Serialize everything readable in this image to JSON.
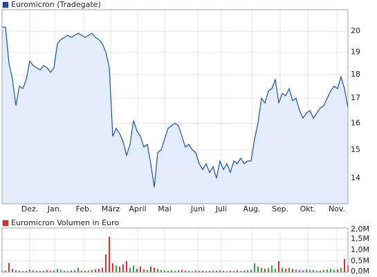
{
  "chart_data": [
    {
      "type": "line",
      "log_scale": true,
      "grid": true,
      "fill": "#e3ecfa",
      "series": [
        {
          "name": "Euromicron (Tradegate)",
          "color": "#1f4e9c",
          "values": [
            20.2,
            20.2,
            18.5,
            17.8,
            16.7,
            17.5,
            17.4,
            17.8,
            18.6,
            18.4,
            18.3,
            18.2,
            18.4,
            18.3,
            18.1,
            18.3,
            19.4,
            19.6,
            19.7,
            19.8,
            19.7,
            19.8,
            19.9,
            19.8,
            19.7,
            19.8,
            19.9,
            19.7,
            19.6,
            19.4,
            19.0,
            18.3,
            15.5,
            15.8,
            15.6,
            15.3,
            14.8,
            15.2,
            16.1,
            15.7,
            15.5,
            15.1,
            15.2,
            14.5,
            13.7,
            14.9,
            15.0,
            15.4,
            15.8,
            15.9,
            16.0,
            15.9,
            15.5,
            15.1,
            15.2,
            15.0,
            14.9,
            14.5,
            14.3,
            14.5,
            14.2,
            14.4,
            14.0,
            14.6,
            14.3,
            14.5,
            14.2,
            14.6,
            14.5,
            14.7,
            14.5,
            14.6,
            14.6,
            15.4,
            16.0,
            17.0,
            16.8,
            17.3,
            17.4,
            17.8,
            16.8,
            17.2,
            17.1,
            17.4,
            16.9,
            17.0,
            16.5,
            16.2,
            16.4,
            16.5,
            16.2,
            16.4,
            16.6,
            16.7,
            17.0,
            17.3,
            17.5,
            17.4,
            17.9,
            17.4,
            16.6
          ]
        }
      ],
      "x": [
        0,
        1,
        2,
        3,
        4,
        5,
        6,
        7,
        8,
        9,
        10,
        11,
        12,
        13,
        14,
        15,
        16,
        17,
        18,
        19,
        20,
        21,
        22,
        23,
        24,
        25,
        26,
        27,
        28,
        29,
        30,
        31,
        32,
        33,
        34,
        35,
        36,
        37,
        38,
        39,
        40,
        41,
        42,
        43,
        44,
        45,
        46,
        47,
        48,
        49,
        50,
        51,
        52,
        53,
        54,
        55,
        56,
        57,
        58,
        59,
        60,
        61,
        62,
        63,
        64,
        65,
        66,
        67,
        68,
        69,
        70,
        71,
        72,
        73,
        74,
        75,
        76,
        77,
        78,
        79,
        80,
        81,
        82,
        83,
        84,
        85,
        86,
        87,
        88,
        89,
        90,
        91,
        92,
        93,
        94,
        95,
        96,
        97,
        98,
        99,
        100
      ],
      "xlim": [
        0,
        100
      ],
      "xticks": [
        {
          "value": 8,
          "label": "Dez."
        },
        {
          "value": 15.2,
          "label": "Jan."
        },
        {
          "value": 23.6,
          "label": "Feb."
        },
        {
          "value": 31.4,
          "label": "März"
        },
        {
          "value": 39.2,
          "label": "April"
        },
        {
          "value": 47,
          "label": "Mai"
        },
        {
          "value": 56.6,
          "label": "Juni"
        },
        {
          "value": 63.4,
          "label": "Juli"
        },
        {
          "value": 72.2,
          "label": "Aug."
        },
        {
          "value": 80.4,
          "label": "Sep."
        },
        {
          "value": 88.4,
          "label": "Okt."
        },
        {
          "value": 96.8,
          "label": "Nov."
        }
      ],
      "ylim": [
        13.16,
        21.07
      ],
      "yticks": [
        14,
        15,
        16,
        17,
        18,
        19,
        20
      ]
    },
    {
      "type": "bar",
      "grid": true,
      "series": [
        {
          "name": "Euromicron Volumen in Euro",
          "color": "#cc3333",
          "values": [
            60000,
            80000,
            420000,
            150000,
            90000,
            70000,
            50000,
            60000,
            120000,
            80000,
            60000,
            50000,
            70000,
            90000,
            60000,
            80000,
            150000,
            100000,
            70000,
            60000,
            80000,
            90000,
            200000,
            70000,
            60000,
            80000,
            100000,
            120000,
            150000,
            200000,
            800000,
            1600000,
            400000,
            300000,
            250000,
            350000,
            500000,
            200000,
            300000,
            150000,
            250000,
            120000,
            100000,
            250000,
            200000,
            150000,
            100000,
            80000,
            70000,
            90000,
            60000,
            80000,
            100000,
            70000,
            60000,
            50000,
            80000,
            60000,
            70000,
            50000,
            60000,
            80000,
            70000,
            90000,
            60000,
            50000,
            70000,
            60000,
            80000,
            60000,
            70000,
            90000,
            100000,
            400000,
            250000,
            200000,
            150000,
            180000,
            300000,
            150000,
            500000,
            200000,
            150000,
            200000,
            150000,
            120000,
            100000,
            80000,
            120000,
            100000,
            90000,
            70000,
            80000,
            100000,
            120000,
            150000,
            110000,
            130000,
            200000,
            600000,
            300000
          ],
          "colors": [
            "#3c9a3c",
            "#3c9a3c",
            "#cc3333",
            "#cc3333",
            "#cc3333",
            "#3c9a3c",
            "#cc3333",
            "#3c9a3c",
            "#3c9a3c",
            "#cc3333",
            "#cc3333",
            "#cc3333",
            "#3c9a3c",
            "#cc3333",
            "#cc3333",
            "#3c9a3c",
            "#3c9a3c",
            "#3c9a3c",
            "#3c9a3c",
            "#3c9a3c",
            "#cc3333",
            "#3c9a3c",
            "#3c9a3c",
            "#cc3333",
            "#cc3333",
            "#3c9a3c",
            "#3c9a3c",
            "#cc3333",
            "#cc3333",
            "#cc3333",
            "#cc3333",
            "#cc3333",
            "#cc3333",
            "#3c9a3c",
            "#cc3333",
            "#cc3333",
            "#cc3333",
            "#3c9a3c",
            "#3c9a3c",
            "#cc3333",
            "#cc3333",
            "#cc3333",
            "#3c9a3c",
            "#cc3333",
            "#cc3333",
            "#3c9a3c",
            "#3c9a3c",
            "#3c9a3c",
            "#3c9a3c",
            "#3c9a3c",
            "#3c9a3c",
            "#cc3333",
            "#cc3333",
            "#cc3333",
            "#3c9a3c",
            "#cc3333",
            "#cc3333",
            "#cc3333",
            "#cc3333",
            "#3c9a3c",
            "#cc3333",
            "#3c9a3c",
            "#cc3333",
            "#3c9a3c",
            "#cc3333",
            "#3c9a3c",
            "#cc3333",
            "#3c9a3c",
            "#cc3333",
            "#3c9a3c",
            "#cc3333",
            "#3c9a3c",
            "#3c9a3c",
            "#3c9a3c",
            "#3c9a3c",
            "#3c9a3c",
            "#cc3333",
            "#3c9a3c",
            "#3c9a3c",
            "#3c9a3c",
            "#cc3333",
            "#3c9a3c",
            "#cc3333",
            "#3c9a3c",
            "#cc3333",
            "#3c9a3c",
            "#cc3333",
            "#cc3333",
            "#3c9a3c",
            "#3c9a3c",
            "#cc3333",
            "#3c9a3c",
            "#3c9a3c",
            "#3c9a3c",
            "#3c9a3c",
            "#3c9a3c",
            "#3c9a3c",
            "#cc3333",
            "#3c9a3c",
            "#cc3333",
            "#cc3333"
          ]
        }
      ],
      "x": [
        0,
        1,
        2,
        3,
        4,
        5,
        6,
        7,
        8,
        9,
        10,
        11,
        12,
        13,
        14,
        15,
        16,
        17,
        18,
        19,
        20,
        21,
        22,
        23,
        24,
        25,
        26,
        27,
        28,
        29,
        30,
        31,
        32,
        33,
        34,
        35,
        36,
        37,
        38,
        39,
        40,
        41,
        42,
        43,
        44,
        45,
        46,
        47,
        48,
        49,
        50,
        51,
        52,
        53,
        54,
        55,
        56,
        57,
        58,
        59,
        60,
        61,
        62,
        63,
        64,
        65,
        66,
        67,
        68,
        69,
        70,
        71,
        72,
        73,
        74,
        75,
        76,
        77,
        78,
        79,
        80,
        81,
        82,
        83,
        84,
        85,
        86,
        87,
        88,
        89,
        90,
        91,
        92,
        93,
        94,
        95,
        96,
        97,
        98,
        99,
        100
      ],
      "xlim": [
        0,
        100
      ],
      "ylim": [
        0,
        2000000
      ],
      "yticks": [
        {
          "value": 0,
          "label": "0,0M"
        },
        {
          "value": 500000,
          "label": "0,5M"
        },
        {
          "value": 1000000,
          "label": "1,0M"
        },
        {
          "value": 1500000,
          "label": "1,5M"
        },
        {
          "value": 2000000,
          "label": "2,0M"
        }
      ]
    }
  ]
}
